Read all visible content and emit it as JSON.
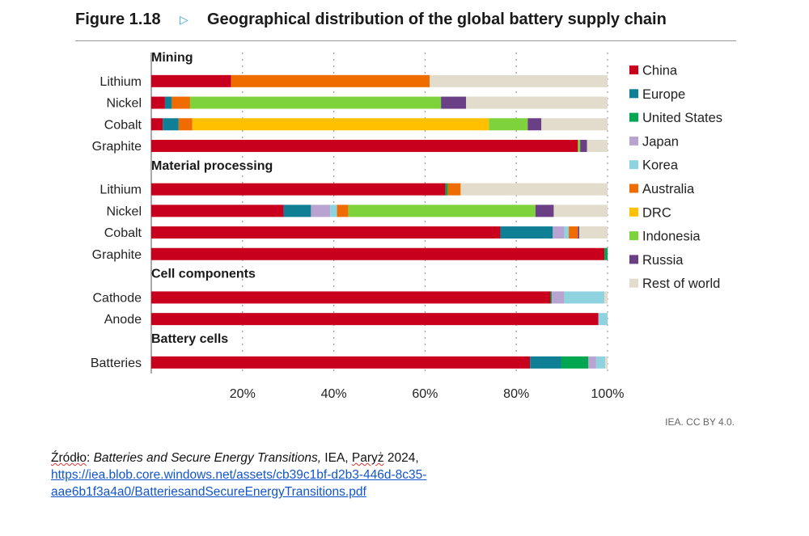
{
  "figure": {
    "number": "Figure 1.18",
    "marker": "▷",
    "title": "Geographical distribution of the global battery supply chain"
  },
  "credit": "IEA. CC BY 4.0.",
  "source": {
    "prefix": "Źródło",
    "colon": ": ",
    "title": "Batteries and Secure Energy Transitions,",
    "publisher": " IEA, ",
    "city": "Paryż",
    "year": " 2024,",
    "url_line1": "https://iea.blob.core.windows.net/assets/cb39c1bf-d2b3-446d-8c35-",
    "url_line2": "aae6b1f3a4a0/BatteriesandSecureEnergyTransitions.pdf"
  },
  "chart_data": {
    "type": "bar",
    "orientation": "horizontal",
    "stacked": true,
    "title": "Geographical distribution of the global battery supply chain",
    "xlim": [
      0,
      100
    ],
    "x_ticks": [
      "20%",
      "40%",
      "60%",
      "80%",
      "100%"
    ],
    "x_tick_values": [
      20,
      40,
      60,
      80,
      100
    ],
    "gridlines": "dotted vertical",
    "legend_position": "right",
    "series_names": [
      "China",
      "Europe",
      "United States",
      "Japan",
      "Korea",
      "Australia",
      "DRC",
      "Indonesia",
      "Russia",
      "Rest of world"
    ],
    "colors": [
      "#c8001e",
      "#0f7f96",
      "#00a650",
      "#b9a3d1",
      "#8fd3e0",
      "#ef6c00",
      "#ffc000",
      "#7ed23c",
      "#6b3f86",
      "#e1dccb"
    ],
    "groups": [
      {
        "name": "Mining",
        "rows": [
          {
            "label": "Lithium",
            "values": [
              17.5,
              0,
              0,
              0,
              0,
              43.5,
              0,
              0,
              0,
              39
            ]
          },
          {
            "label": "Nickel",
            "values": [
              3,
              1.5,
              0,
              0,
              0,
              4,
              0,
              55,
              5.5,
              31
            ]
          },
          {
            "label": "Cobalt",
            "values": [
              2.5,
              3.5,
              0,
              0,
              0,
              3,
              65,
              8.5,
              3,
              14.5
            ]
          },
          {
            "label": "Graphite",
            "values": [
              93.5,
              0,
              0,
              0,
              0,
              0,
              0,
              0.5,
              1.5,
              4.5
            ]
          }
        ]
      },
      {
        "name": "Material processing",
        "rows": [
          {
            "label": "Lithium",
            "values": [
              64.5,
              0,
              0.5,
              0,
              0,
              2.8,
              0,
              0,
              0,
              32.2
            ]
          },
          {
            "label": "Nickel",
            "values": [
              29,
              6,
              0,
              4.2,
              1.5,
              2.5,
              0,
              41,
              4,
              11.8
            ]
          },
          {
            "label": "Cobalt",
            "values": [
              76.5,
              11.5,
              0,
              2.5,
              1,
              2,
              0,
              0,
              0.3,
              6.2
            ]
          },
          {
            "label": "Graphite",
            "values": [
              99.3,
              0,
              0.7,
              0,
              0,
              0,
              0,
              0,
              0,
              0
            ]
          }
        ]
      },
      {
        "name": "Cell components",
        "rows": [
          {
            "label": "Cathode",
            "values": [
              87.5,
              0,
              0.3,
              2.7,
              8.8,
              0,
              0,
              0,
              0,
              0.7
            ]
          },
          {
            "label": "Anode",
            "values": [
              98,
              0,
              0,
              0,
              2,
              0,
              0,
              0,
              0,
              0
            ]
          }
        ]
      },
      {
        "name": "Battery cells",
        "rows": [
          {
            "label": "Batteries",
            "values": [
              83,
              6.8,
              6,
              1.7,
              2,
              0,
              0,
              0,
              0,
              0.5
            ]
          }
        ]
      }
    ]
  }
}
